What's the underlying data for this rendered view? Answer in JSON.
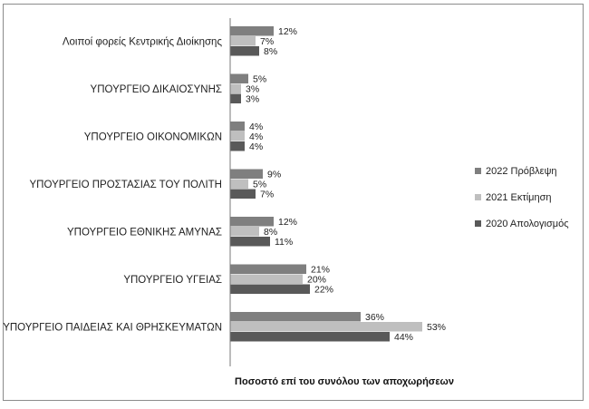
{
  "chart_data": {
    "type": "bar",
    "orientation": "horizontal",
    "xlabel": "Ποσοστό επί του συνόλου των αποχωρήσεων",
    "ylabel": "",
    "xlim": [
      0,
      60
    ],
    "value_suffix": "%",
    "grid": false,
    "legend_position": "right",
    "categories": [
      "Λοιποί φορείς Κεντρικής Διοίκησης",
      "ΥΠΟΥΡΓΕΙΟ ΔΙΚΑΙΟΣΥΝΗΣ",
      "ΥΠΟΥΡΓΕΙΟ ΟΙΚΟΝΟΜΙΚΩΝ",
      "ΥΠΟΥΡΓΕΙΟ ΠΡΟΣΤΑΣΙΑΣ ΤΟΥ ΠΟΛΙΤΗ",
      "ΥΠΟΥΡΓΕΙΟ ΕΘΝΙΚΗΣ ΑΜΥΝΑΣ",
      "ΥΠΟΥΡΓΕΙΟ ΥΓΕΙΑΣ",
      "ΥΠΟΥΡΓΕΙΟ ΠΑΙΔΕΙΑΣ ΚΑΙ ΘΡΗΣΚΕΥΜΑΤΩΝ"
    ],
    "series": [
      {
        "name": "2022 Πρόβλεψη",
        "color": "#7f7f7f",
        "values": [
          12,
          5,
          4,
          9,
          12,
          21,
          36
        ]
      },
      {
        "name": "2021 Εκτίμηση",
        "color": "#bfbfbf",
        "values": [
          7,
          3,
          4,
          5,
          8,
          20,
          53
        ]
      },
      {
        "name": "2020 Απολογισμός",
        "color": "#595959",
        "values": [
          8,
          3,
          4,
          7,
          11,
          22,
          44
        ]
      }
    ]
  }
}
